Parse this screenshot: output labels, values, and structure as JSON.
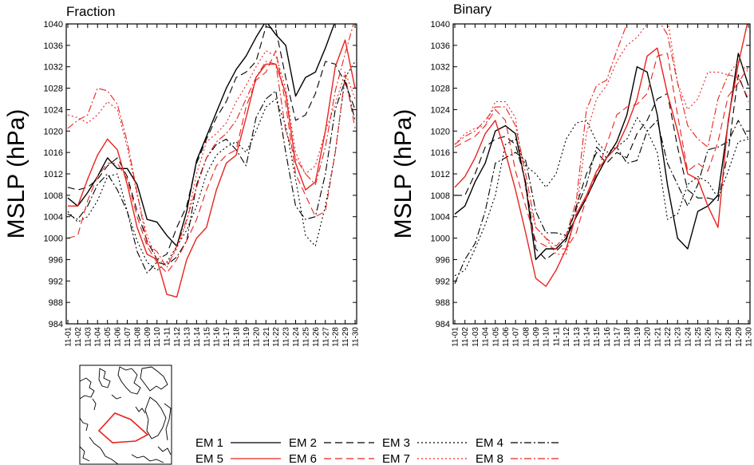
{
  "chart_data": [
    {
      "type": "line",
      "title": "Fraction",
      "ylabel": "MSLP (hPa)",
      "xlabel": "",
      "ylim": [
        984,
        1040
      ],
      "yticks": [
        984,
        988,
        992,
        996,
        1000,
        1004,
        1008,
        1012,
        1016,
        1020,
        1024,
        1028,
        1032,
        1036,
        1040
      ],
      "categories": [
        "11-01",
        "11-02",
        "11-03",
        "11-04",
        "11-05",
        "11-06",
        "11-07",
        "11-08",
        "11-09",
        "11-10",
        "11-11",
        "11-12",
        "11-13",
        "11-14",
        "11-15",
        "11-16",
        "11-17",
        "11-18",
        "11-19",
        "11-20",
        "11-21",
        "11-22",
        "11-23",
        "11-24",
        "11-25",
        "11-26",
        "11-27",
        "11-28",
        "11-29",
        "11-30"
      ],
      "series": [
        {
          "name": "EM 1",
          "values": [
            1007.5,
            1006,
            1008.5,
            1011.5,
            1015,
            1013,
            1013,
            1010,
            1003.5,
            1003,
            1000.5,
            998.5,
            1005,
            1014.5,
            1019,
            1023.5,
            1028,
            1031.5,
            1034,
            1037.5,
            1040.5,
            1038,
            1036,
            1026.5,
            1030,
            1031,
            1035.5,
            1040.5,
            1041,
            1041
          ]
        },
        {
          "name": "EM 2",
          "values": [
            1009.5,
            1009,
            1009.5,
            1011,
            1013.5,
            1015,
            1011.5,
            1005,
            999.5,
            996,
            997,
            1002,
            1006,
            1014,
            1018.5,
            1022.5,
            1025.5,
            1030,
            1031,
            1033,
            1039.5,
            1039,
            1030,
            1022,
            1023,
            1027,
            1033,
            1032.5,
            1029,
            1024
          ]
        },
        {
          "name": "EM 3",
          "values": [
            1005,
            1003,
            1004,
            1007,
            1011.5,
            1012,
            1005,
            999.5,
            995.5,
            994,
            995.5,
            998.5,
            1001.5,
            1006,
            1012,
            1015.5,
            1017,
            1018,
            1016,
            1020,
            1024.5,
            1026,
            1021,
            1011,
            1000.5,
            998.5,
            1006,
            1016,
            1030,
            1033
          ]
        },
        {
          "name": "EM 4",
          "values": [
            1004.5,
            1003.5,
            1006,
            1010,
            1012,
            1009,
            1005,
            997.5,
            993.5,
            995.5,
            995,
            996.5,
            999.5,
            1010,
            1015,
            1017.5,
            1018.5,
            1016.5,
            1013.5,
            1022.5,
            1026,
            1027.5,
            1016,
            1006,
            1003.5,
            1004,
            1012,
            1024,
            1029.5,
            1022
          ]
        },
        {
          "name": "EM 5",
          "values": [
            1006,
            1006,
            1011,
            1015.5,
            1018.5,
            1016.5,
            1010,
            1002,
            997,
            996,
            989.5,
            989,
            996,
            1000,
            1002,
            1009,
            1014,
            1015.5,
            1022.5,
            1030,
            1032.5,
            1032.5,
            1027,
            1014,
            1009,
            1010.5,
            1020,
            1032,
            1037,
            1028
          ]
        },
        {
          "name": "EM 6",
          "values": [
            1000,
            1000.5,
            1007,
            1011.5,
            1014,
            1014,
            1011,
            1004,
            998.5,
            995.5,
            993.5,
            996,
            999.5,
            1003.5,
            1009,
            1013.5,
            1015.5,
            1016.5,
            1024.5,
            1029.5,
            1031,
            1035,
            1025,
            1012,
            1008,
            1004,
            1005,
            1016,
            1030.5,
            1020.5
          ]
        },
        {
          "name": "EM 7",
          "values": [
            1023,
            1022.5,
            1021.5,
            1023,
            1025.5,
            1024,
            1017,
            1008,
            1000.5,
            996,
            995,
            998,
            1003,
            1012,
            1018,
            1019.5,
            1021.5,
            1025.5,
            1028.5,
            1032,
            1035,
            1034,
            1028,
            1016,
            1012,
            1013.5,
            1020,
            1025,
            1031,
            1026
          ]
        },
        {
          "name": "EM 8",
          "values": [
            1020.5,
            1022,
            1023,
            1028,
            1027.5,
            1025,
            1018,
            1008.5,
            999,
            997.5,
            994.5,
            998.5,
            1003.5,
            1009.5,
            1015,
            1018,
            1019.5,
            1022,
            1026,
            1030,
            1033,
            1032.5,
            1020,
            1015,
            1012,
            1010,
            1017,
            1027.5,
            1034.5,
            1041
          ]
        }
      ]
    },
    {
      "type": "line",
      "title": "Binary",
      "ylabel": "MSLP (hPa)",
      "xlabel": "",
      "ylim": [
        984,
        1040
      ],
      "yticks": [
        984,
        988,
        992,
        996,
        1000,
        1004,
        1008,
        1012,
        1016,
        1020,
        1024,
        1028,
        1032,
        1036,
        1040
      ],
      "categories": [
        "11-01",
        "11-02",
        "11-03",
        "11-04",
        "11-05",
        "11-06",
        "11-07",
        "11-08",
        "11-09",
        "11-10",
        "11-11",
        "11-12",
        "11-13",
        "11-14",
        "11-15",
        "11-16",
        "11-17",
        "11-18",
        "11-19",
        "11-20",
        "11-21",
        "11-22",
        "11-23",
        "11-24",
        "11-25",
        "11-26",
        "11-27",
        "11-28",
        "11-29",
        "11-30"
      ],
      "series": [
        {
          "name": "EM 1",
          "values": [
            1004.5,
            1006,
            1010.5,
            1014,
            1020,
            1021,
            1019.5,
            1010,
            996,
            998,
            998,
            1000,
            1004,
            1007.5,
            1011.5,
            1015,
            1018,
            1023,
            1032,
            1031,
            1023,
            1010,
            1000,
            998,
            1005,
            1006,
            1008,
            1021.5,
            1034.5,
            1028.5
          ]
        },
        {
          "name": "EM 2",
          "values": [
            1008,
            1008,
            1012,
            1017,
            1018.5,
            1019,
            1017.5,
            1010.5,
            998,
            996,
            997.5,
            999.5,
            1006,
            1012,
            1016,
            1014,
            1016,
            1015,
            1019.5,
            1022,
            1026,
            1027,
            1017,
            1009,
            1007.5,
            1007.5,
            1007,
            1016,
            1030.5,
            1025.5
          ]
        },
        {
          "name": "EM 3",
          "values": [
            993,
            994,
            998,
            1002.5,
            1008,
            1017.5,
            1018.5,
            1013.5,
            1012,
            1009.5,
            1012,
            1018.5,
            1021.5,
            1022,
            1018,
            1016,
            1017,
            1018.5,
            1022.5,
            1020,
            1016,
            1003.5,
            1004.5,
            1010,
            1011.5,
            1010.5,
            1007.5,
            1012.5,
            1018,
            1018.5
          ]
        },
        {
          "name": "EM 4",
          "values": [
            991.5,
            996,
            999,
            1005,
            1014,
            1015,
            1016,
            1014.5,
            1005,
            1001,
            1001,
            1000.5,
            1005.5,
            1010,
            1017,
            1015,
            1017,
            1014,
            1014.5,
            1020,
            1022,
            1014,
            1010,
            1006,
            1010,
            1016.5,
            1017,
            1018,
            1022,
            1018.5
          ]
        },
        {
          "name": "EM 5",
          "values": [
            1009.5,
            1011.5,
            1015,
            1019.5,
            1022,
            1016,
            1009,
            1001,
            992.5,
            991,
            994,
            998,
            1004.5,
            1008,
            1012.5,
            1015,
            1017,
            1021,
            1026,
            1034,
            1035.5,
            1027,
            1020,
            1012,
            1011,
            1006,
            1002,
            1022,
            1032.5,
            1041
          ]
        },
        {
          "name": "EM 6",
          "values": [
            1017,
            1018,
            1019,
            1021,
            1024,
            1022,
            1012.5,
            1006,
            999.5,
            998.5,
            998,
            998,
            1001,
            1007.5,
            1012,
            1017.5,
            1023,
            1024.5,
            1025,
            1027,
            1034,
            1034.5,
            1023,
            1012.5,
            1014,
            1012.5,
            1018,
            1026.5,
            1029,
            1032
          ]
        },
        {
          "name": "EM 7",
          "values": [
            1017.5,
            1019.5,
            1020.5,
            1021,
            1025.5,
            1025.5,
            1022.5,
            1009,
            1002,
            1000,
            997,
            997,
            1005,
            1019.5,
            1026,
            1028.5,
            1033,
            1036,
            1037.5,
            1040,
            1043,
            1041,
            1029,
            1024,
            1026,
            1031,
            1031,
            1030.5,
            1033,
            1031
          ]
        },
        {
          "name": "EM 8",
          "values": [
            1017.5,
            1019,
            1020,
            1022,
            1024.5,
            1024.5,
            1021,
            1012,
            1002,
            1000,
            998.5,
            1000.5,
            1007,
            1024,
            1028.5,
            1029.5,
            1035,
            1040,
            1040.5,
            1041,
            1041,
            1038,
            1029,
            1021,
            1018.5,
            1017,
            1026,
            1030.5,
            1030,
            1026
          ]
        }
      ]
    }
  ],
  "legend": [
    {
      "label": "EM 1",
      "color": "#000000",
      "dash": "solid"
    },
    {
      "label": "EM 2",
      "color": "#000000",
      "dash": "longdash"
    },
    {
      "label": "EM 3",
      "color": "#000000",
      "dash": "dot"
    },
    {
      "label": "EM 4",
      "color": "#000000",
      "dash": "dashdot"
    },
    {
      "label": "EM 5",
      "color": "#e8231e",
      "dash": "solid"
    },
    {
      "label": "EM 6",
      "color": "#e8231e",
      "dash": "longdash"
    },
    {
      "label": "EM 7",
      "color": "#e8231e",
      "dash": "dot"
    },
    {
      "label": "EM 8",
      "color": "#e8231e",
      "dash": "dashdot"
    }
  ],
  "colors": {
    "black": "#000000",
    "red": "#e8231e"
  },
  "map_inset": {
    "icon": "arctic-map-with-region-outline",
    "region_color": "#e8231e"
  }
}
